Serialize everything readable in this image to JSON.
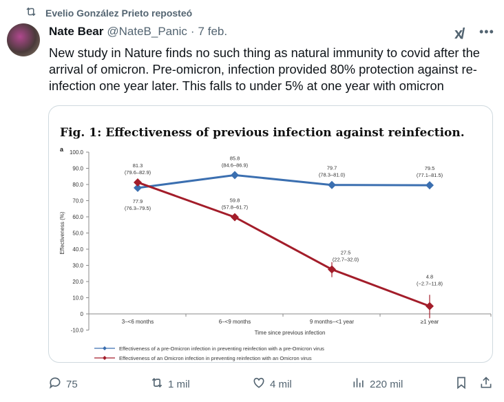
{
  "repost": {
    "label": "Evelio González Prieto reposteó"
  },
  "tweet": {
    "name": "Nate Bear",
    "handle": "@NateB_Panic",
    "separator": "·",
    "date": "7 feb.",
    "text": "New study in Nature finds no such thing as natural immunity to covid after the arrival of omicron. Pre-omicron, infection provided 80% protection against re-infection one year later. This falls to under 5% at one year with omicron"
  },
  "actions": {
    "replies": "75",
    "reposts": "1 mil",
    "likes": "4 mil",
    "views": "220 mil"
  },
  "chart_data": {
    "type": "line",
    "title": "Fig. 1: Effectiveness of previous infection against reinfection.",
    "panel": "a",
    "xlabel": "Time since previous infection",
    "ylabel": "Effectiveness (%)",
    "ylim": [
      -10,
      100
    ],
    "yticks": [
      "100.0",
      "90.0",
      "80.0",
      "70.0",
      "60.0",
      "50.0",
      "40.0",
      "30.0",
      "20.0",
      "10.0",
      "0",
      "-10.0"
    ],
    "ytick_values": [
      100,
      90,
      80,
      70,
      60,
      50,
      40,
      30,
      20,
      10,
      0,
      -10
    ],
    "categories": [
      "3–<6 months",
      "6–<9 months",
      "9 months–<1 year",
      "≥1 year"
    ],
    "series": [
      {
        "name": "Effectiveness of a pre-Omicron infection in preventing reinfection with a pre-Omicron virus",
        "color": "#3b6fb0",
        "values": [
          77.9,
          85.8,
          79.7,
          79.5
        ],
        "lower": [
          76.3,
          84.6,
          78.3,
          77.1
        ],
        "upper": [
          79.5,
          86.9,
          81.0,
          81.5
        ],
        "labels": [
          "77.9",
          "85.8",
          "79.7",
          "79.5"
        ],
        "ci_labels": [
          "(76.3–79.5)",
          "(84.6–86.9)",
          "(78.3–81.0)",
          "(77.1–81.5)"
        ]
      },
      {
        "name": "Effectiveness of an Omicron infection in preventing reinfection with an Omicron virus",
        "color": "#a31d2a",
        "values": [
          81.3,
          59.8,
          27.5,
          4.8
        ],
        "lower": [
          79.6,
          57.8,
          22.7,
          -2.7
        ],
        "upper": [
          82.9,
          61.7,
          32.0,
          11.8
        ],
        "labels": [
          "81.3",
          "59.8",
          "27.5",
          "4.8"
        ],
        "ci_labels": [
          "(79.6–82.9)",
          "(57.8–61.7)",
          "(22.7–32.0)",
          "(−2.7–11.8)"
        ]
      }
    ],
    "legend": "bottom-left",
    "grid": false
  }
}
